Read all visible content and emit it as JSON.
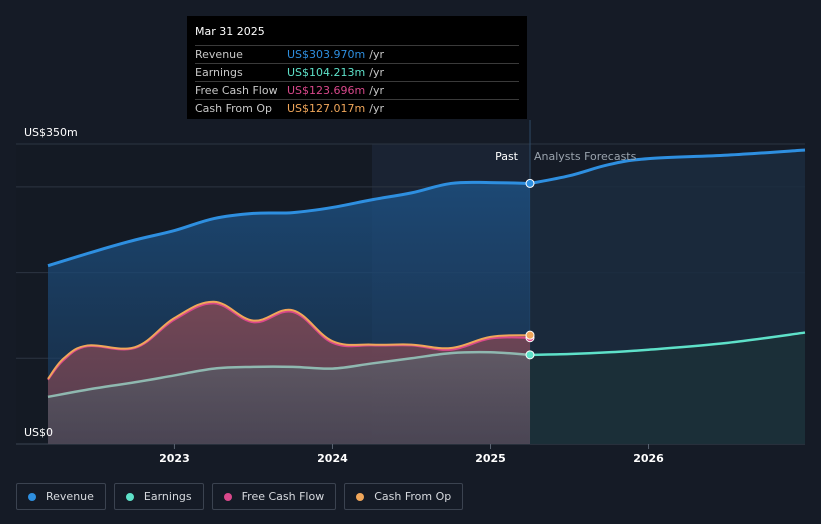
{
  "chart_data": {
    "type": "area",
    "title": "",
    "xlabel": "",
    "ylabel": "",
    "ylim": [
      0,
      350
    ],
    "y_unit_label_top": "US$350m",
    "y_unit_label_bottom": "US$0",
    "x_ticks": [
      {
        "label": "2023",
        "x": 2023.0
      },
      {
        "label": "2024",
        "x": 2024.0
      },
      {
        "label": "2025",
        "x": 2025.0
      },
      {
        "label": "2026",
        "x": 2026.0
      }
    ],
    "x_range": [
      2022.2,
      2026.99
    ],
    "past_forecast_divider_x": 2025.25,
    "highlight_start_x": 2024.25,
    "past_label": "Past",
    "forecast_label": "Analysts Forecasts",
    "series": [
      {
        "name": "Revenue",
        "color": "#2e8fe0",
        "past": [
          [
            2022.2,
            208
          ],
          [
            2022.5,
            225
          ],
          [
            2022.75,
            238
          ],
          [
            2023.0,
            249
          ],
          [
            2023.25,
            263
          ],
          [
            2023.5,
            269
          ],
          [
            2023.75,
            270
          ],
          [
            2024.0,
            276
          ],
          [
            2024.25,
            285
          ],
          [
            2024.5,
            293
          ],
          [
            2024.75,
            304
          ],
          [
            2025.0,
            305
          ],
          [
            2025.25,
            304
          ]
        ],
        "forecast": [
          [
            2025.25,
            304
          ],
          [
            2025.5,
            313
          ],
          [
            2025.75,
            326
          ],
          [
            2026.0,
            333
          ],
          [
            2026.5,
            337
          ],
          [
            2026.99,
            343
          ]
        ]
      },
      {
        "name": "Earnings",
        "color": "#5ee1c9",
        "past": [
          [
            2022.2,
            55
          ],
          [
            2022.5,
            65
          ],
          [
            2022.75,
            72
          ],
          [
            2023.0,
            80
          ],
          [
            2023.25,
            88
          ],
          [
            2023.5,
            90
          ],
          [
            2023.75,
            90
          ],
          [
            2024.0,
            88
          ],
          [
            2024.25,
            94
          ],
          [
            2024.5,
            100
          ],
          [
            2024.75,
            106
          ],
          [
            2025.0,
            107
          ],
          [
            2025.25,
            104
          ]
        ],
        "forecast": [
          [
            2025.25,
            104
          ],
          [
            2025.5,
            105
          ],
          [
            2025.75,
            107
          ],
          [
            2026.0,
            110
          ],
          [
            2026.5,
            118
          ],
          [
            2026.99,
            130
          ]
        ]
      },
      {
        "name": "Free Cash Flow",
        "color": "#d9488b",
        "past": [
          [
            2022.2,
            75
          ],
          [
            2022.3,
            98
          ],
          [
            2022.45,
            114
          ],
          [
            2022.75,
            112
          ],
          [
            2023.0,
            145
          ],
          [
            2023.25,
            164
          ],
          [
            2023.5,
            142
          ],
          [
            2023.75,
            154
          ],
          [
            2024.0,
            118
          ],
          [
            2024.25,
            115
          ],
          [
            2024.5,
            115
          ],
          [
            2024.75,
            110
          ],
          [
            2025.0,
            123
          ],
          [
            2025.25,
            124
          ]
        ],
        "forecast": []
      },
      {
        "name": "Cash From Op",
        "color": "#f0a65a",
        "past": [
          [
            2022.2,
            76
          ],
          [
            2022.3,
            100
          ],
          [
            2022.45,
            115
          ],
          [
            2022.75,
            113
          ],
          [
            2023.0,
            147
          ],
          [
            2023.25,
            166
          ],
          [
            2023.5,
            144
          ],
          [
            2023.75,
            156
          ],
          [
            2024.0,
            120
          ],
          [
            2024.25,
            116
          ],
          [
            2024.5,
            116
          ],
          [
            2024.75,
            112
          ],
          [
            2025.0,
            125
          ],
          [
            2025.25,
            127
          ]
        ],
        "forecast": []
      }
    ]
  },
  "tooltip": {
    "date": "Mar 31 2025",
    "rows": [
      {
        "label": "Revenue",
        "value": "US$303.970m",
        "unit": "/yr",
        "color": "#2e8fe0"
      },
      {
        "label": "Earnings",
        "value": "US$104.213m",
        "unit": "/yr",
        "color": "#5ee1c9"
      },
      {
        "label": "Free Cash Flow",
        "value": "US$123.696m",
        "unit": "/yr",
        "color": "#d9488b"
      },
      {
        "label": "Cash From Op",
        "value": "US$127.017m",
        "unit": "/yr",
        "color": "#f0a65a"
      }
    ]
  },
  "legend": [
    {
      "label": "Revenue",
      "color": "#2e8fe0"
    },
    {
      "label": "Earnings",
      "color": "#5ee1c9"
    },
    {
      "label": "Free Cash Flow",
      "color": "#d9488b"
    },
    {
      "label": "Cash From Op",
      "color": "#f0a65a"
    }
  ]
}
